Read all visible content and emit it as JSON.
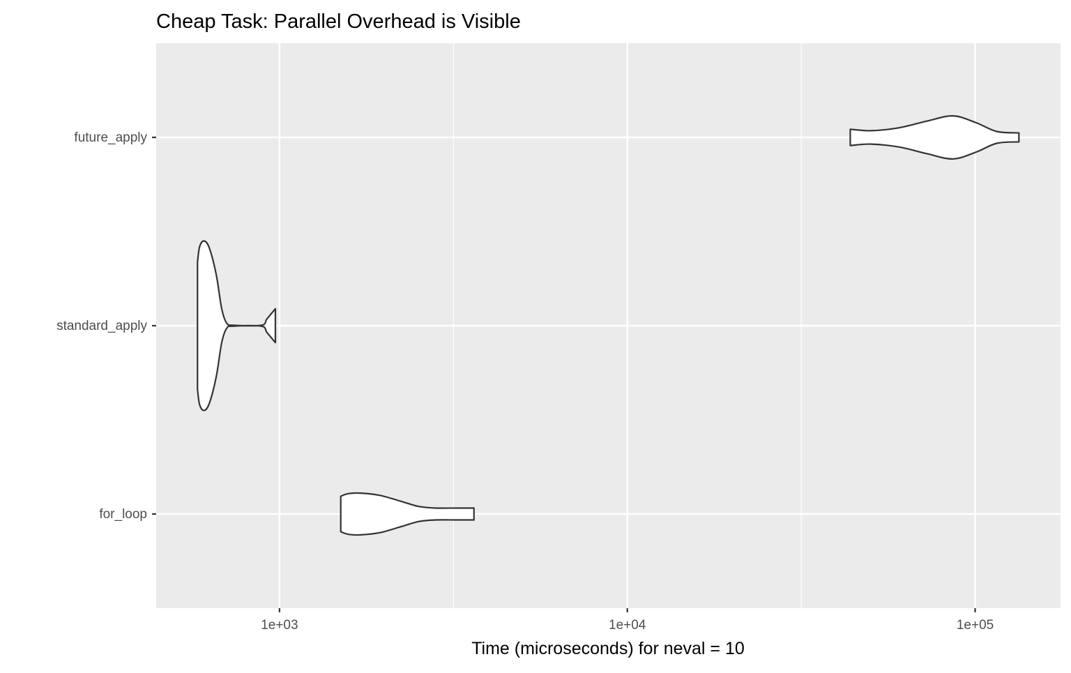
{
  "chart_data": {
    "type": "violin",
    "title": "Cheap Task: Parallel Overhead is Visible",
    "xlabel": "Time (microseconds) for neval = 10",
    "ylabel": "",
    "x_scale": "log10",
    "xlim": [
      442,
      176000
    ],
    "x_ticks": [
      {
        "value": 1000,
        "label": "1e+03"
      },
      {
        "value": 10000,
        "label": "1e+04"
      },
      {
        "value": 100000,
        "label": "1e+05"
      }
    ],
    "x_minor_gridlines": [
      3162,
      31623
    ],
    "grid": true,
    "categories": [
      "for_loop",
      "standard_apply",
      "future_apply"
    ],
    "series": [
      {
        "name": "for_loop",
        "outline": [
          [
            1500,
            0.21
          ],
          [
            1578,
            0.24
          ],
          [
            1714,
            0.246
          ],
          [
            1944,
            0.22
          ],
          [
            2234,
            0.15
          ],
          [
            2506,
            0.09
          ],
          [
            2812,
            0.07
          ],
          [
            3228,
            0.07
          ],
          [
            3623,
            0.07
          ]
        ]
      },
      {
        "name": "standard_apply",
        "outline": [
          [
            581,
            0.75
          ],
          [
            589,
            0.93
          ],
          [
            606,
            1.0
          ],
          [
            628,
            0.92
          ],
          [
            658,
            0.6
          ],
          [
            682,
            0.2
          ],
          [
            705,
            0.03
          ],
          [
            738,
            0.005
          ],
          [
            887,
            0.005
          ],
          [
            920,
            0.08
          ],
          [
            973,
            0.2
          ]
        ]
      },
      {
        "name": "future_apply",
        "outline": [
          [
            43750,
            0.096
          ],
          [
            50200,
            0.079
          ],
          [
            60500,
            0.114
          ],
          [
            72800,
            0.193
          ],
          [
            86300,
            0.254
          ],
          [
            100400,
            0.175
          ],
          [
            115300,
            0.07
          ],
          [
            133600,
            0.053
          ]
        ]
      }
    ],
    "colors": {
      "panel": "#EBEBEB",
      "grid": "#FFFFFF",
      "violin_fill": "#FFFFFF",
      "violin_stroke": "#333333",
      "tick_text": "#4D4D4D"
    }
  }
}
